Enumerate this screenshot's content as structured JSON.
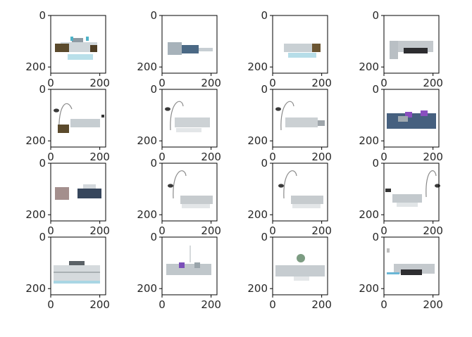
{
  "chart_data": {
    "type": "image_grid",
    "grid": {
      "rows": 4,
      "cols": 4
    },
    "axes": {
      "xlim": [
        0,
        224
      ],
      "ylim": [
        224,
        0
      ],
      "x_ticks": [
        0,
        200
      ],
      "y_ticks": [
        0,
        200
      ],
      "x_tick_labels": [
        "0",
        "200"
      ],
      "y_tick_labels": [
        "0",
        "200"
      ]
    },
    "panels": [
      {
        "scene": "brown-sofa-coffee-table-teal-lamps"
      },
      {
        "scene": "grey-blue-sofa-set"
      },
      {
        "scene": "grey-sofa-coffee-table-brown-chair"
      },
      {
        "scene": "grey-sectional-sofa-black-ottoman"
      },
      {
        "scene": "arc-lamp-brown-chair-sofa"
      },
      {
        "scene": "arc-lamp-grey-sofa"
      },
      {
        "scene": "arc-lamp-grey-sofa-side-table"
      },
      {
        "scene": "dark-sofa-purple-pillows"
      },
      {
        "scene": "pink-armchair-dark-sofa"
      },
      {
        "scene": "arc-lamp-grey-sofa-low"
      },
      {
        "scene": "arc-lamp-grey-sofa-low-2"
      },
      {
        "scene": "grey-sofa-arc-lamp-right"
      },
      {
        "scene": "tv-cabinet-grey"
      },
      {
        "scene": "grey-sofa-purple-pillow-plant"
      },
      {
        "scene": "grey-sofa-plant"
      },
      {
        "scene": "grey-sofa-black-ottoman-blue-rug"
      }
    ],
    "title": "",
    "xlabel": "",
    "ylabel": ""
  }
}
